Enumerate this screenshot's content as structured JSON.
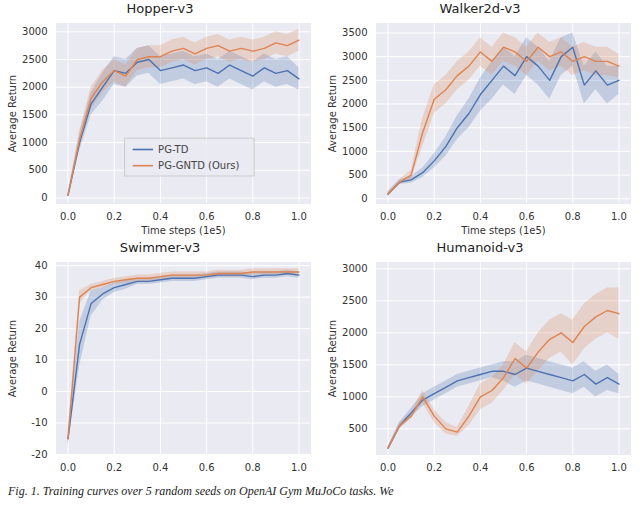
{
  "chart_data": [
    {
      "type": "line",
      "title": "Hopper-v3",
      "x_label": "Time steps (1e5)",
      "y_label": "Average Return",
      "x": [
        0,
        0.05,
        0.1,
        0.15,
        0.2,
        0.25,
        0.3,
        0.35,
        0.4,
        0.45,
        0.5,
        0.55,
        0.6,
        0.65,
        0.7,
        0.75,
        0.8,
        0.85,
        0.9,
        0.95,
        1.0
      ],
      "xlim": [
        -0.05,
        1.05
      ],
      "xticks": [
        {
          "value": 0,
          "label": "0.0"
        },
        0.2,
        0.4,
        0.6,
        0.8,
        {
          "value": 1,
          "label": "1.0"
        }
      ],
      "ylim": [
        -100,
        3150
      ],
      "yticks": [
        0,
        500,
        1000,
        1500,
        2000,
        2500,
        3000
      ],
      "grid": true,
      "legend": "lower center",
      "series": [
        {
          "name": "PG-TD",
          "color": "#4c72b0",
          "values": [
            50,
            1000,
            1700,
            2000,
            2300,
            2250,
            2450,
            2500,
            2300,
            2350,
            2400,
            2300,
            2350,
            2250,
            2400,
            2300,
            2200,
            2350,
            2250,
            2300,
            2150
          ],
          "lower": [
            20,
            850,
            1500,
            1750,
            2050,
            2000,
            2200,
            2250,
            2050,
            2100,
            2150,
            2050,
            2100,
            2000,
            2150,
            2050,
            1950,
            2100,
            2000,
            2050,
            1950
          ],
          "upper": [
            80,
            1150,
            1900,
            2250,
            2550,
            2500,
            2700,
            2750,
            2550,
            2600,
            2650,
            2550,
            2600,
            2500,
            2650,
            2550,
            2450,
            2600,
            2500,
            2550,
            2350
          ]
        },
        {
          "name": "PG-GNTD (Ours)",
          "color": "#dd8452",
          "values": [
            50,
            1050,
            1800,
            2100,
            2300,
            2200,
            2500,
            2550,
            2550,
            2650,
            2700,
            2600,
            2700,
            2750,
            2650,
            2700,
            2650,
            2700,
            2800,
            2750,
            2850
          ],
          "lower": [
            20,
            900,
            1600,
            1900,
            2100,
            2000,
            2300,
            2350,
            2350,
            2450,
            2500,
            2400,
            2500,
            2550,
            2450,
            2500,
            2450,
            2500,
            2600,
            2550,
            2650
          ],
          "upper": [
            80,
            1200,
            2000,
            2300,
            2500,
            2400,
            2700,
            2750,
            2750,
            2850,
            2900,
            2800,
            2900,
            2950,
            2850,
            2900,
            2850,
            2900,
            3000,
            2950,
            3050
          ]
        }
      ]
    },
    {
      "type": "line",
      "title": "Walker2d-v3",
      "x_label": "Time steps (1e5)",
      "y_label": "Average Return",
      "x": [
        0,
        0.05,
        0.1,
        0.15,
        0.2,
        0.25,
        0.3,
        0.35,
        0.4,
        0.45,
        0.5,
        0.55,
        0.6,
        0.65,
        0.7,
        0.75,
        0.8,
        0.85,
        0.9,
        0.95,
        1.0
      ],
      "xlim": [
        -0.05,
        1.05
      ],
      "xticks": [
        {
          "value": 0,
          "label": "0.0"
        },
        0.2,
        0.4,
        0.6,
        0.8,
        {
          "value": 1,
          "label": "1.0"
        }
      ],
      "ylim": [
        -100,
        3700
      ],
      "yticks": [
        0,
        500,
        1000,
        1500,
        2000,
        2500,
        3000,
        3500
      ],
      "grid": true,
      "series": [
        {
          "name": "PG-TD",
          "color": "#4c72b0",
          "values": [
            100,
            350,
            400,
            550,
            800,
            1100,
            1500,
            1800,
            2200,
            2500,
            2800,
            2600,
            3000,
            2800,
            2500,
            3000,
            3200,
            2400,
            2700,
            2400,
            2500
          ],
          "lower": [
            50,
            300,
            330,
            450,
            650,
            900,
            1250,
            1500,
            1850,
            2100,
            2400,
            2200,
            2600,
            2400,
            2100,
            2600,
            2800,
            2000,
            2300,
            2000,
            2200
          ],
          "upper": [
            150,
            400,
            470,
            650,
            950,
            1300,
            1750,
            2100,
            2550,
            2900,
            3200,
            3000,
            3400,
            3200,
            2900,
            3400,
            3500,
            2800,
            3100,
            2800,
            2800
          ]
        },
        {
          "name": "PG-GNTD (Ours)",
          "color": "#dd8452",
          "values": [
            100,
            350,
            500,
            1400,
            2100,
            2300,
            2600,
            2800,
            3100,
            2900,
            3200,
            3100,
            2900,
            3200,
            3000,
            3100,
            2900,
            3000,
            2900,
            2900,
            2800
          ],
          "lower": [
            50,
            300,
            400,
            1100,
            1800,
            2000,
            2300,
            2500,
            2800,
            2600,
            2900,
            2800,
            2600,
            2900,
            2700,
            2800,
            2600,
            2700,
            2600,
            2600,
            2550
          ],
          "upper": [
            150,
            400,
            600,
            1700,
            2400,
            2600,
            2900,
            3100,
            3400,
            3200,
            3500,
            3400,
            3200,
            3500,
            3300,
            3400,
            3200,
            3300,
            3200,
            3200,
            3050
          ]
        }
      ]
    },
    {
      "type": "line",
      "title": "Swimmer-v3",
      "y_label": "Average Return",
      "x": [
        0,
        0.05,
        0.1,
        0.15,
        0.2,
        0.25,
        0.3,
        0.35,
        0.4,
        0.45,
        0.5,
        0.55,
        0.6,
        0.65,
        0.7,
        0.75,
        0.8,
        0.85,
        0.9,
        0.95,
        1.0
      ],
      "xlim": [
        -0.05,
        1.05
      ],
      "xticks": [
        {
          "value": 0,
          "label": "0.0"
        },
        0.2,
        0.4,
        0.6,
        0.8,
        {
          "value": 1,
          "label": "1.0"
        }
      ],
      "ylim": [
        -20,
        41
      ],
      "yticks": [
        -20,
        -10,
        0,
        10,
        20,
        30,
        40
      ],
      "grid": true,
      "series": [
        {
          "name": "PG-TD",
          "color": "#4c72b0",
          "values": [
            -15,
            15,
            28,
            31,
            33,
            34,
            35,
            35,
            35.5,
            36,
            36,
            36,
            36.5,
            37,
            37,
            37,
            36.5,
            37,
            37,
            37.5,
            37
          ],
          "lower": [
            -17,
            8,
            24,
            29,
            31.5,
            32.5,
            34,
            34,
            34.5,
            35,
            35,
            35,
            35.5,
            36,
            36,
            36,
            35.5,
            36,
            36,
            36.5,
            36
          ],
          "upper": [
            -13,
            22,
            32,
            33,
            34.5,
            35.5,
            36,
            36,
            36.5,
            37,
            37,
            37,
            37.5,
            38,
            38,
            38,
            37.5,
            38,
            38,
            38.5,
            38
          ]
        },
        {
          "name": "PG-GNTD (Ours)",
          "color": "#dd8452",
          "values": [
            -15,
            30,
            33,
            34,
            35,
            35.5,
            36,
            36,
            36.5,
            37,
            37,
            37,
            37,
            37.5,
            37.5,
            37.5,
            38,
            38,
            38,
            38,
            38
          ],
          "lower": [
            -17,
            28,
            32,
            33,
            34,
            34.5,
            35,
            35,
            35.5,
            36,
            36,
            36,
            36,
            36.5,
            36.5,
            36.5,
            37,
            37,
            37,
            37,
            37
          ],
          "upper": [
            -13,
            32,
            34,
            35,
            36,
            36.5,
            37,
            37,
            37.5,
            38,
            38,
            38,
            38,
            38.5,
            38.5,
            38.5,
            39,
            39,
            39,
            39,
            39
          ]
        }
      ]
    },
    {
      "type": "line",
      "title": "Humanoid-v3",
      "y_label": "Average Return",
      "x": [
        0,
        0.05,
        0.1,
        0.15,
        0.2,
        0.25,
        0.3,
        0.35,
        0.4,
        0.45,
        0.5,
        0.55,
        0.6,
        0.65,
        0.7,
        0.75,
        0.8,
        0.85,
        0.9,
        0.95,
        1.0
      ],
      "xlim": [
        -0.05,
        1.05
      ],
      "xticks": [
        {
          "value": 0,
          "label": "0.0"
        },
        0.2,
        0.4,
        0.6,
        0.8,
        {
          "value": 1,
          "label": "1.0"
        }
      ],
      "ylim": [
        100,
        3100
      ],
      "yticks": [
        500,
        1000,
        1500,
        2000,
        2500,
        3000
      ],
      "grid": true,
      "series": [
        {
          "name": "PG-TD",
          "color": "#4c72b0",
          "values": [
            200,
            550,
            750,
            950,
            1050,
            1150,
            1250,
            1300,
            1350,
            1400,
            1400,
            1350,
            1450,
            1400,
            1350,
            1300,
            1250,
            1350,
            1200,
            1300,
            1200
          ],
          "lower": [
            180,
            500,
            680,
            850,
            950,
            1050,
            1150,
            1200,
            1250,
            1300,
            1250,
            1150,
            1250,
            1200,
            1150,
            1100,
            1050,
            1150,
            1000,
            1100,
            1050
          ],
          "upper": [
            220,
            600,
            820,
            1050,
            1150,
            1250,
            1350,
            1400,
            1450,
            1500,
            1550,
            1550,
            1650,
            1600,
            1550,
            1500,
            1450,
            1550,
            1400,
            1500,
            1350
          ]
        },
        {
          "name": "PG-GNTD (Ours)",
          "color": "#dd8452",
          "values": [
            200,
            550,
            700,
            1000,
            700,
            500,
            450,
            700,
            1000,
            1100,
            1300,
            1600,
            1450,
            1700,
            1900,
            2000,
            1850,
            2100,
            2250,
            2350,
            2300
          ],
          "lower": [
            180,
            500,
            650,
            900,
            600,
            420,
            380,
            550,
            800,
            900,
            1100,
            1350,
            1200,
            1400,
            1600,
            1700,
            1500,
            1750,
            1900,
            2000,
            1900
          ],
          "upper": [
            220,
            600,
            750,
            1100,
            800,
            600,
            520,
            850,
            1200,
            1300,
            1500,
            1850,
            1700,
            2000,
            2200,
            2300,
            2200,
            2450,
            2600,
            2700,
            2700
          ]
        }
      ]
    }
  ],
  "caption": "Fig. 1. Training curves over 5 random seeds on OpenAI Gym MuJoCo tasks. We"
}
